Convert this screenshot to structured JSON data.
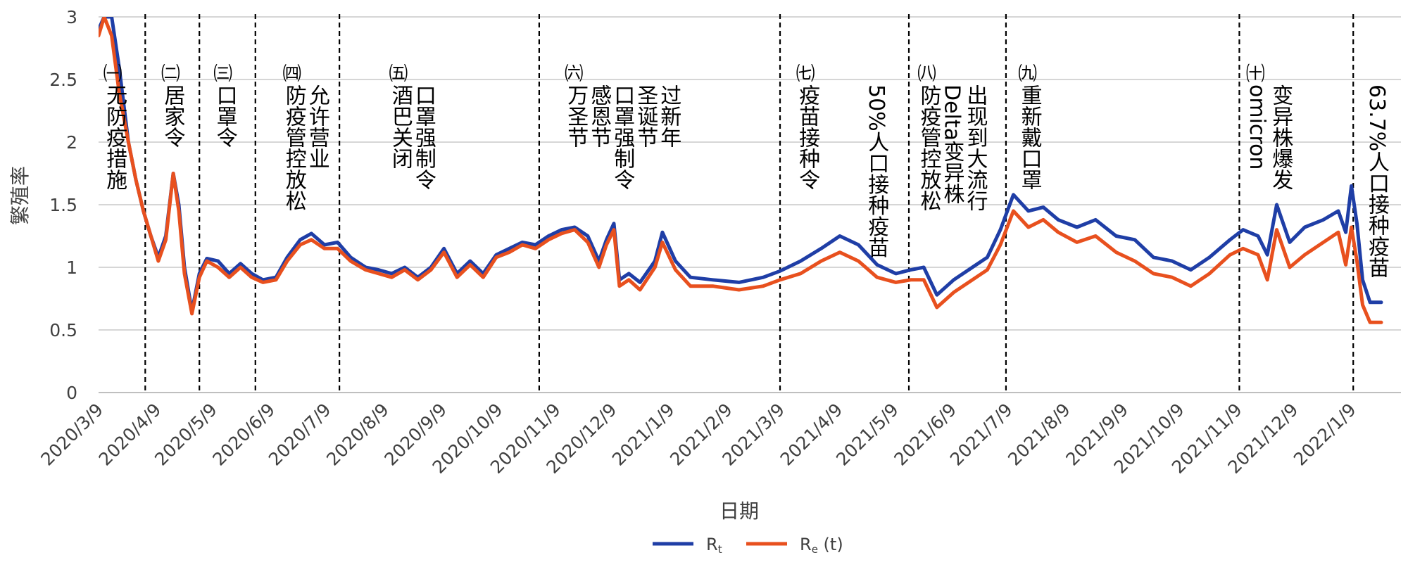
{
  "chart_data": {
    "type": "line",
    "xlabel": "日期",
    "ylabel": "繁殖率",
    "ylim": [
      0,
      3
    ],
    "y_ticks": [
      "0",
      "0.5",
      "1",
      "1.5",
      "2",
      "2.5",
      "3"
    ],
    "x_ticks": [
      "2020/3/9",
      "2020/4/9",
      "2020/5/9",
      "2020/6/9",
      "2020/7/9",
      "2020/8/9",
      "2020/9/9",
      "2020/10/9",
      "2020/11/9",
      "2020/12/9",
      "2021/1/9",
      "2021/2/9",
      "2021/3/9",
      "2021/4/9",
      "2021/5/9",
      "2021/6/9",
      "2021/7/9",
      "2021/8/9",
      "2021/9/9",
      "2021/10/9",
      "2021/11/9",
      "2021/12/9",
      "2022/1/9"
    ],
    "grid": true,
    "legend_position": "bottom",
    "series": [
      {
        "name": "Rt",
        "legend_label": "Rt",
        "color": "#1f3ea6",
        "points": [
          [
            "2020/3/9",
            2.9
          ],
          [
            "2020/3/12",
            3.0
          ],
          [
            "2020/3/16",
            3.0
          ],
          [
            "2020/3/20",
            2.6
          ],
          [
            "2020/3/25",
            2.0
          ],
          [
            "2020/3/29",
            1.7
          ],
          [
            "2020/4/2",
            1.45
          ],
          [
            "2020/4/6",
            1.25
          ],
          [
            "2020/4/10",
            1.08
          ],
          [
            "2020/4/14",
            1.25
          ],
          [
            "2020/4/18",
            1.75
          ],
          [
            "2020/4/21",
            1.5
          ],
          [
            "2020/4/24",
            1.0
          ],
          [
            "2020/4/28",
            0.65
          ],
          [
            "2020/5/2",
            0.95
          ],
          [
            "2020/5/6",
            1.07
          ],
          [
            "2020/5/12",
            1.05
          ],
          [
            "2020/5/18",
            0.95
          ],
          [
            "2020/5/24",
            1.03
          ],
          [
            "2020/5/30",
            0.95
          ],
          [
            "2020/6/5",
            0.9
          ],
          [
            "2020/6/12",
            0.92
          ],
          [
            "2020/6/18",
            1.08
          ],
          [
            "2020/6/25",
            1.22
          ],
          [
            "2020/7/1",
            1.27
          ],
          [
            "2020/7/8",
            1.18
          ],
          [
            "2020/7/15",
            1.2
          ],
          [
            "2020/7/22",
            1.08
          ],
          [
            "2020/7/30",
            1.0
          ],
          [
            "2020/8/6",
            0.98
          ],
          [
            "2020/8/13",
            0.95
          ],
          [
            "2020/8/20",
            1.0
          ],
          [
            "2020/8/27",
            0.92
          ],
          [
            "2020/9/3",
            1.0
          ],
          [
            "2020/9/10",
            1.15
          ],
          [
            "2020/9/17",
            0.95
          ],
          [
            "2020/9/24",
            1.05
          ],
          [
            "2020/10/1",
            0.95
          ],
          [
            "2020/10/8",
            1.1
          ],
          [
            "2020/10/15",
            1.15
          ],
          [
            "2020/10/22",
            1.2
          ],
          [
            "2020/10/29",
            1.18
          ],
          [
            "2020/11/5",
            1.25
          ],
          [
            "2020/11/12",
            1.3
          ],
          [
            "2020/11/19",
            1.32
          ],
          [
            "2020/11/26",
            1.25
          ],
          [
            "2020/12/2",
            1.05
          ],
          [
            "2020/12/6",
            1.22
          ],
          [
            "2020/12/10",
            1.35
          ],
          [
            "2020/12/13",
            0.9
          ],
          [
            "2020/12/18",
            0.95
          ],
          [
            "2020/12/24",
            0.88
          ],
          [
            "2021/1/1",
            1.05
          ],
          [
            "2021/1/5",
            1.28
          ],
          [
            "2021/1/12",
            1.05
          ],
          [
            "2021/1/20",
            0.92
          ],
          [
            "2021/2/1",
            0.9
          ],
          [
            "2021/2/15",
            0.88
          ],
          [
            "2021/2/28",
            0.92
          ],
          [
            "2021/3/9",
            0.97
          ],
          [
            "2021/3/20",
            1.05
          ],
          [
            "2021/3/31",
            1.15
          ],
          [
            "2021/4/10",
            1.25
          ],
          [
            "2021/4/20",
            1.18
          ],
          [
            "2021/4/30",
            1.02
          ],
          [
            "2021/5/10",
            0.95
          ],
          [
            "2021/5/18",
            0.98
          ],
          [
            "2021/5/25",
            1.0
          ],
          [
            "2021/6/1",
            0.78
          ],
          [
            "2021/6/10",
            0.9
          ],
          [
            "2021/6/20",
            1.0
          ],
          [
            "2021/6/28",
            1.08
          ],
          [
            "2021/7/5",
            1.3
          ],
          [
            "2021/7/12",
            1.58
          ],
          [
            "2021/7/20",
            1.45
          ],
          [
            "2021/7/28",
            1.48
          ],
          [
            "2021/8/5",
            1.38
          ],
          [
            "2021/8/15",
            1.32
          ],
          [
            "2021/8/25",
            1.38
          ],
          [
            "2021/9/5",
            1.25
          ],
          [
            "2021/9/15",
            1.22
          ],
          [
            "2021/9/25",
            1.08
          ],
          [
            "2021/10/5",
            1.05
          ],
          [
            "2021/10/15",
            0.98
          ],
          [
            "2021/10/25",
            1.08
          ],
          [
            "2021/11/5",
            1.22
          ],
          [
            "2021/11/12",
            1.3
          ],
          [
            "2021/11/20",
            1.25
          ],
          [
            "2021/11/25",
            1.1
          ],
          [
            "2021/11/30",
            1.5
          ],
          [
            "2021/12/7",
            1.2
          ],
          [
            "2021/12/15",
            1.32
          ],
          [
            "2021/12/25",
            1.38
          ],
          [
            "2022/1/2",
            1.45
          ],
          [
            "2022/1/6",
            1.28
          ],
          [
            "2022/1/9",
            1.65
          ],
          [
            "2022/1/12",
            1.35
          ],
          [
            "2022/1/15",
            0.9
          ],
          [
            "2022/1/19",
            0.72
          ],
          [
            "2022/1/25",
            0.72
          ]
        ]
      },
      {
        "name": "Re (t)",
        "legend_label": "Re (t)",
        "color": "#e8501e",
        "points": [
          [
            "2020/3/9",
            2.85
          ],
          [
            "2020/3/12",
            3.0
          ],
          [
            "2020/3/16",
            2.85
          ],
          [
            "2020/3/20",
            2.4
          ],
          [
            "2020/3/25",
            2.0
          ],
          [
            "2020/3/29",
            1.7
          ],
          [
            "2020/4/2",
            1.45
          ],
          [
            "2020/4/6",
            1.25
          ],
          [
            "2020/4/10",
            1.05
          ],
          [
            "2020/4/14",
            1.22
          ],
          [
            "2020/4/18",
            1.75
          ],
          [
            "2020/4/21",
            1.45
          ],
          [
            "2020/4/24",
            0.95
          ],
          [
            "2020/4/28",
            0.63
          ],
          [
            "2020/5/2",
            0.92
          ],
          [
            "2020/5/6",
            1.05
          ],
          [
            "2020/5/12",
            1.0
          ],
          [
            "2020/5/18",
            0.92
          ],
          [
            "2020/5/24",
            1.0
          ],
          [
            "2020/5/30",
            0.92
          ],
          [
            "2020/6/5",
            0.88
          ],
          [
            "2020/6/12",
            0.9
          ],
          [
            "2020/6/18",
            1.05
          ],
          [
            "2020/6/25",
            1.18
          ],
          [
            "2020/7/1",
            1.22
          ],
          [
            "2020/7/8",
            1.15
          ],
          [
            "2020/7/15",
            1.15
          ],
          [
            "2020/7/22",
            1.05
          ],
          [
            "2020/7/30",
            0.98
          ],
          [
            "2020/8/6",
            0.95
          ],
          [
            "2020/8/13",
            0.92
          ],
          [
            "2020/8/20",
            0.98
          ],
          [
            "2020/8/27",
            0.9
          ],
          [
            "2020/9/3",
            0.98
          ],
          [
            "2020/9/10",
            1.12
          ],
          [
            "2020/9/17",
            0.92
          ],
          [
            "2020/9/24",
            1.02
          ],
          [
            "2020/10/1",
            0.92
          ],
          [
            "2020/10/8",
            1.08
          ],
          [
            "2020/10/15",
            1.12
          ],
          [
            "2020/10/22",
            1.18
          ],
          [
            "2020/10/29",
            1.15
          ],
          [
            "2020/11/5",
            1.22
          ],
          [
            "2020/11/12",
            1.27
          ],
          [
            "2020/11/19",
            1.3
          ],
          [
            "2020/11/26",
            1.2
          ],
          [
            "2020/12/2",
            1.0
          ],
          [
            "2020/12/6",
            1.18
          ],
          [
            "2020/12/10",
            1.3
          ],
          [
            "2020/12/13",
            0.85
          ],
          [
            "2020/12/18",
            0.9
          ],
          [
            "2020/12/24",
            0.82
          ],
          [
            "2021/1/1",
            1.0
          ],
          [
            "2021/1/5",
            1.2
          ],
          [
            "2021/1/12",
            0.98
          ],
          [
            "2021/1/20",
            0.85
          ],
          [
            "2021/2/1",
            0.85
          ],
          [
            "2021/2/15",
            0.82
          ],
          [
            "2021/2/28",
            0.85
          ],
          [
            "2021/3/9",
            0.9
          ],
          [
            "2021/3/20",
            0.95
          ],
          [
            "2021/3/31",
            1.05
          ],
          [
            "2021/4/10",
            1.12
          ],
          [
            "2021/4/20",
            1.05
          ],
          [
            "2021/4/30",
            0.92
          ],
          [
            "2021/5/10",
            0.88
          ],
          [
            "2021/5/18",
            0.9
          ],
          [
            "2021/5/25",
            0.9
          ],
          [
            "2021/6/1",
            0.68
          ],
          [
            "2021/6/10",
            0.8
          ],
          [
            "2021/6/20",
            0.9
          ],
          [
            "2021/6/28",
            0.98
          ],
          [
            "2021/7/5",
            1.18
          ],
          [
            "2021/7/12",
            1.45
          ],
          [
            "2021/7/20",
            1.32
          ],
          [
            "2021/7/28",
            1.38
          ],
          [
            "2021/8/5",
            1.28
          ],
          [
            "2021/8/15",
            1.2
          ],
          [
            "2021/8/25",
            1.25
          ],
          [
            "2021/9/5",
            1.12
          ],
          [
            "2021/9/15",
            1.05
          ],
          [
            "2021/9/25",
            0.95
          ],
          [
            "2021/10/5",
            0.92
          ],
          [
            "2021/10/15",
            0.85
          ],
          [
            "2021/10/25",
            0.95
          ],
          [
            "2021/11/5",
            1.1
          ],
          [
            "2021/11/12",
            1.15
          ],
          [
            "2021/11/20",
            1.1
          ],
          [
            "2021/11/25",
            0.9
          ],
          [
            "2021/11/30",
            1.3
          ],
          [
            "2021/12/7",
            1.0
          ],
          [
            "2021/12/15",
            1.1
          ],
          [
            "2021/12/25",
            1.2
          ],
          [
            "2022/1/2",
            1.28
          ],
          [
            "2022/1/6",
            1.02
          ],
          [
            "2022/1/9",
            1.32
          ],
          [
            "2022/1/12",
            1.05
          ],
          [
            "2022/1/15",
            0.7
          ],
          [
            "2022/1/19",
            0.56
          ],
          [
            "2022/1/25",
            0.56
          ]
        ]
      }
    ],
    "phase_dividers": [
      "2020/4/3",
      "2020/5/2",
      "2020/6/1",
      "2020/7/16",
      "2020/10/31",
      "2021/3/9",
      "2021/5/17",
      "2021/7/8",
      "2021/11/10",
      "2022/1/10"
    ],
    "annotations": [
      {
        "num": "㈠",
        "date": "2020/3/10",
        "lines": [
          "无防疫措施"
        ]
      },
      {
        "num": "㈡",
        "date": "2020/4/10",
        "lines": [
          "居家令"
        ]
      },
      {
        "num": "㈢",
        "date": "2020/5/8",
        "lines": [
          "口罩令"
        ]
      },
      {
        "num": "㈣",
        "date": "2020/6/14",
        "lines": [
          "防疫管控放松",
          "允许营业"
        ]
      },
      {
        "num": "㈤",
        "date": "2020/8/10",
        "lines": [
          "酒巴关闭",
          "口罩强制令"
        ]
      },
      {
        "num": "㈥",
        "date": "2020/11/12",
        "lines": [
          "万圣节",
          "感恩节",
          "口罩强制令",
          "圣诞节",
          "过新年"
        ]
      },
      {
        "num": "㈦",
        "date": "2021/3/16",
        "lines": [
          "疫苗接种令"
        ]
      },
      {
        "num": "",
        "date": "2021/4/22",
        "lines": [
          "50%人口接种疫苗"
        ]
      },
      {
        "num": "㈧",
        "date": "2021/5/20",
        "lines": [
          "防疫管控放松",
          "Delta变异株",
          "出现到大流行"
        ]
      },
      {
        "num": "㈨",
        "date": "2021/7/13",
        "lines": [
          "重新戴口罩"
        ]
      },
      {
        "num": "㈩",
        "date": "2021/11/12",
        "lines": [
          "omicron",
          "变异株爆发"
        ]
      },
      {
        "num": "",
        "date": "2022/1/15",
        "lines": [
          "63.7%人口接种疫苗"
        ]
      }
    ]
  }
}
